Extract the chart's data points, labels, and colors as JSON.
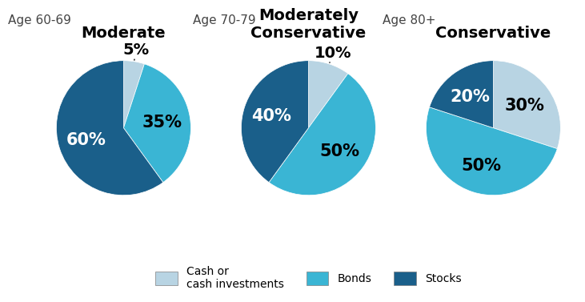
{
  "charts": [
    {
      "title": "Moderate",
      "subtitle": "Age 60-69",
      "slices": [
        5,
        35,
        60
      ],
      "labels": [
        "5%",
        "35%",
        "60%"
      ],
      "colors": [
        "#b8d4e3",
        "#3ab5d4",
        "#1a5f8a"
      ],
      "startangle": 90,
      "label_inside": [
        false,
        true,
        true
      ],
      "annotate_idx": 0
    },
    {
      "title": "Moderately\nConservative",
      "subtitle": "Age 70-79",
      "slices": [
        10,
        50,
        40
      ],
      "labels": [
        "10%",
        "50%",
        "40%"
      ],
      "colors": [
        "#b8d4e3",
        "#3ab5d4",
        "#1a5f8a"
      ],
      "startangle": 90,
      "label_inside": [
        false,
        true,
        true
      ],
      "annotate_idx": 0
    },
    {
      "title": "Conservative",
      "subtitle": "Age 80+",
      "slices": [
        30,
        50,
        20
      ],
      "labels": [
        "30%",
        "50%",
        "20%"
      ],
      "colors": [
        "#b8d4e3",
        "#3ab5d4",
        "#1a5f8a"
      ],
      "startangle": 90,
      "label_inside": [
        true,
        true,
        true
      ],
      "annotate_idx": -1
    }
  ],
  "legend_labels": [
    "Cash or\ncash investments",
    "Bonds",
    "Stocks"
  ],
  "legend_colors": [
    "#b8d4e3",
    "#3ab5d4",
    "#1a5f8a"
  ],
  "bg_color": "#ffffff",
  "title_fontsize": 14,
  "subtitle_fontsize": 11,
  "pct_fontsize_inside": 15,
  "pct_fontsize_outside": 14
}
